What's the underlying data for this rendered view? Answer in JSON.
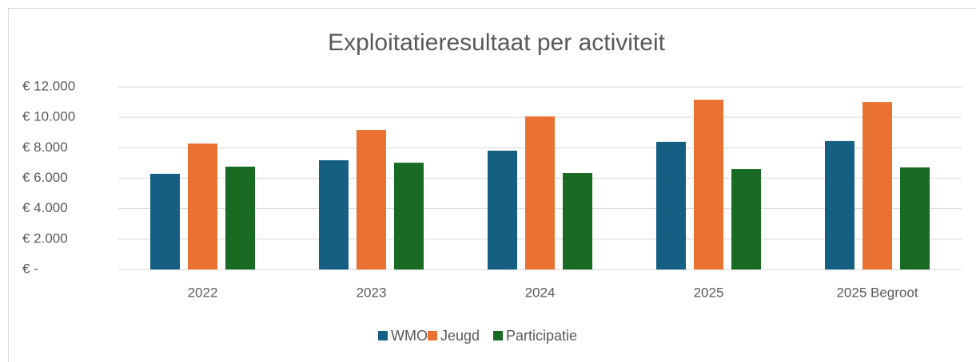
{
  "chart_data": {
    "type": "bar",
    "title": "Exploitatieresultaat per activiteit",
    "categories": [
      "2022",
      "2023",
      "2024",
      "2025",
      "2025 Begroot"
    ],
    "series": [
      {
        "name": "WMO",
        "color": "#156082",
        "values": [
          6290,
          7180,
          7810,
          8390,
          8440
        ]
      },
      {
        "name": "Jeugd",
        "color": "#e97132",
        "values": [
          8280,
          9170,
          10060,
          11160,
          11000
        ]
      },
      {
        "name": "Participatie",
        "color": "#196b24",
        "values": [
          6760,
          7020,
          6340,
          6600,
          6710
        ]
      }
    ],
    "ylim": [
      0,
      12000
    ],
    "yticks": [
      {
        "value": 0,
        "label": "€ -"
      },
      {
        "value": 2000,
        "label": "€ 2.000"
      },
      {
        "value": 4000,
        "label": "€ 4.000"
      },
      {
        "value": 6000,
        "label": "€ 6.000"
      },
      {
        "value": 8000,
        "label": "€ 8.000"
      },
      {
        "value": 10000,
        "label": "€ 10.000"
      },
      {
        "value": 12000,
        "label": "€ 12.000"
      }
    ],
    "grid": true,
    "legend": "bottom"
  }
}
